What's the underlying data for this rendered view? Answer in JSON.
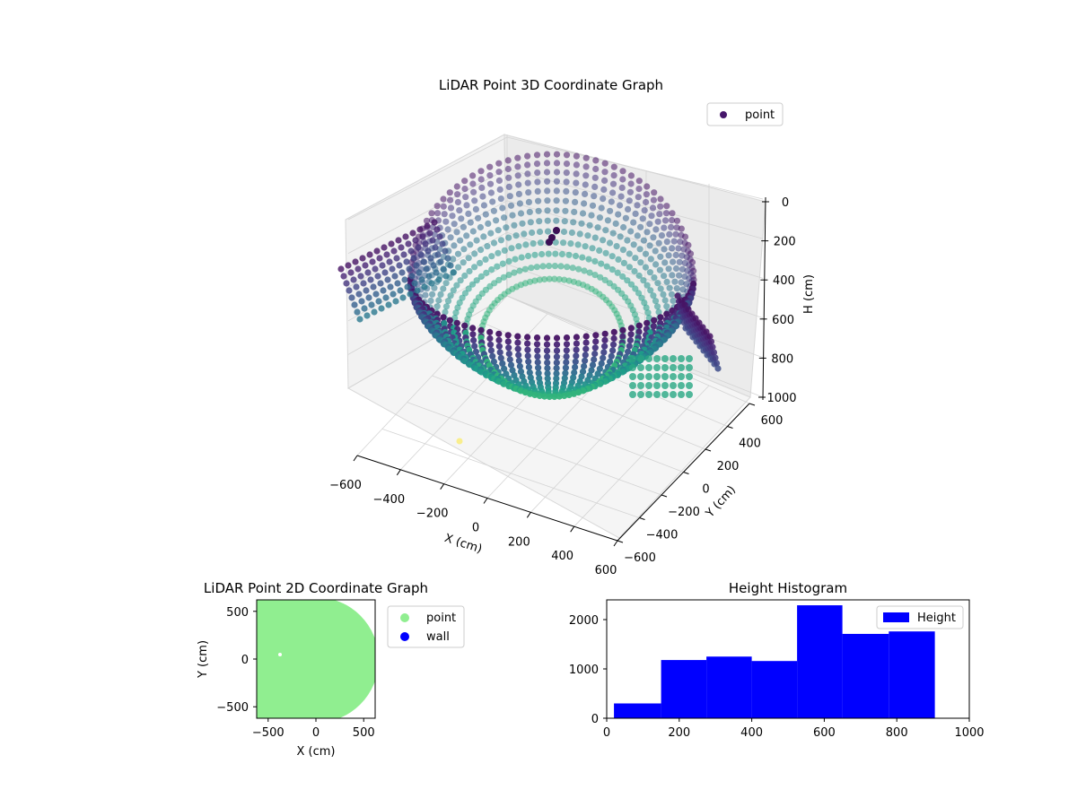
{
  "chart_data": [
    {
      "type": "scatter3d",
      "title": "LiDAR Point 3D Coordinate Graph",
      "xlabel": "X (cm)",
      "ylabel": "Y (cm)",
      "zlabel": "H (cm)",
      "xlim": [
        -600,
        600
      ],
      "ylim": [
        -600,
        600
      ],
      "zlim": [
        1000,
        0
      ],
      "xticks": [
        "−600",
        "−400",
        "−200",
        "0",
        "200",
        "400",
        "600"
      ],
      "yticks": [
        "−600",
        "−400",
        "−200",
        "0",
        "200",
        "400",
        "600"
      ],
      "zticks": [
        "0",
        "200",
        "400",
        "600",
        "800",
        "1000"
      ],
      "legend": {
        "placement": "upper-right",
        "entries": [
          {
            "name": "point",
            "color": "#46166a"
          }
        ]
      },
      "colormap": "viridis",
      "description_of_cloud": {
        "shape": "bowl",
        "radius_cm": 600,
        "height_range_cm": [
          0,
          1000
        ]
      }
    },
    {
      "type": "scatter",
      "title": "LiDAR Point 2D Coordinate Graph",
      "xlabel": "X (cm)",
      "ylabel": "Y (cm)",
      "xlim": [
        -620,
        620
      ],
      "ylim": [
        -620,
        620
      ],
      "xticks": [
        "−500",
        "0",
        "500"
      ],
      "yticks": [
        "−500",
        "0",
        "500"
      ],
      "legend": {
        "placement": "outside-right",
        "entries": [
          {
            "name": "point",
            "color": "#90ee90"
          },
          {
            "name": "wall",
            "color": "#0000ff"
          }
        ]
      }
    },
    {
      "type": "bar",
      "title": "Height Histogram",
      "xlabel": "",
      "ylabel": "",
      "xlim": [
        0,
        1000
      ],
      "ylim": [
        0,
        2400
      ],
      "xticks": [
        "0",
        "200",
        "400",
        "600",
        "800",
        "1000"
      ],
      "yticks": [
        "0",
        "1000",
        "2000"
      ],
      "bins": [
        {
          "from": 20,
          "to": 150,
          "count": 300
        },
        {
          "from": 150,
          "to": 275,
          "count": 1180
        },
        {
          "from": 275,
          "to": 400,
          "count": 1250
        },
        {
          "from": 400,
          "to": 525,
          "count": 1160
        },
        {
          "from": 525,
          "to": 650,
          "count": 2290
        },
        {
          "from": 650,
          "to": 778,
          "count": 1710
        },
        {
          "from": 778,
          "to": 905,
          "count": 1760
        }
      ],
      "color": "#0000ff",
      "legend": {
        "placement": "upper-right",
        "entries": [
          {
            "name": "Height",
            "color": "#0000ff"
          }
        ]
      }
    }
  ]
}
